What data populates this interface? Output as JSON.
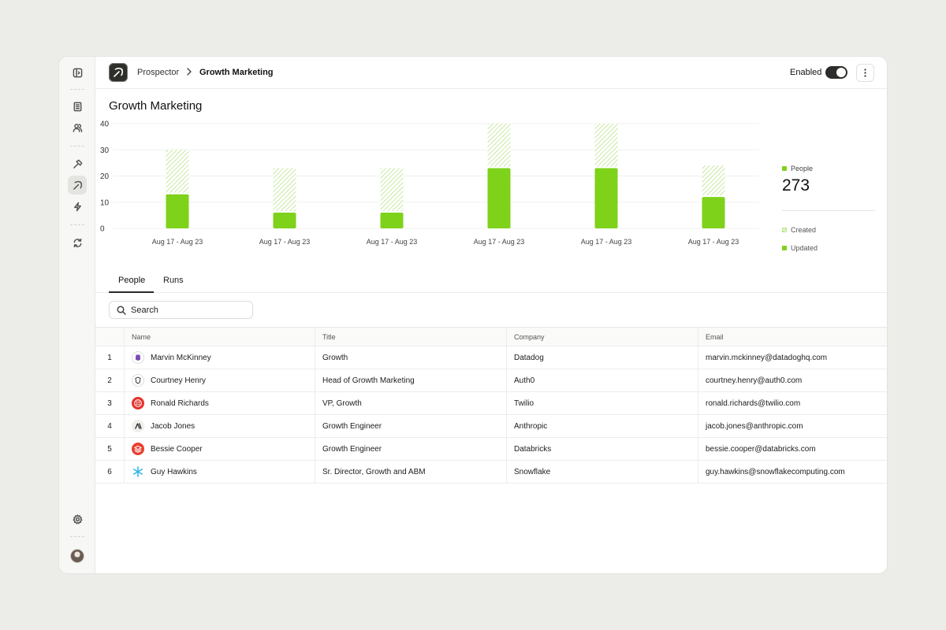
{
  "header": {
    "breadcrumb_parent": "Prospector",
    "breadcrumb_current": "Growth Marketing",
    "enabled_label": "Enabled",
    "enabled": true
  },
  "page": {
    "title": "Growth Marketing"
  },
  "rail": {
    "icons": [
      "sidebar-toggle-icon",
      "building-icon",
      "users-icon",
      "hammer-icon",
      "pickaxe-icon",
      "lightning-icon",
      "refresh-icon",
      "gear-icon"
    ]
  },
  "summary": {
    "people_label": "People",
    "people_total": "273",
    "created_label": "Created",
    "updated_label": "Updated"
  },
  "colors": {
    "accent": "#7ed21a",
    "accent_light": "#c8ec9c"
  },
  "chart_data": {
    "type": "bar",
    "stacked": true,
    "categories": [
      "Aug 17 - Aug 23",
      "Aug 17 - Aug 23",
      "Aug 17 - Aug 23",
      "Aug 17 - Aug 23",
      "Aug 17 - Aug 23",
      "Aug 17 - Aug 23"
    ],
    "series": [
      {
        "name": "Updated",
        "values": [
          13,
          6,
          6,
          23,
          23,
          12
        ]
      },
      {
        "name": "Created",
        "values": [
          17,
          17,
          17,
          17,
          17,
          12
        ]
      }
    ],
    "yticks": [
      0,
      10,
      20,
      30,
      40
    ],
    "ylim": [
      0,
      40
    ],
    "grid": true,
    "legend": "right"
  },
  "tabs": [
    {
      "label": "People",
      "active": true
    },
    {
      "label": "Runs",
      "active": false
    }
  ],
  "search": {
    "placeholder": "Search",
    "value": ""
  },
  "table": {
    "columns": [
      "Name",
      "Title",
      "Company",
      "Email"
    ],
    "rows": [
      {
        "index": "1",
        "name": "Marvin McKinney",
        "title": "Growth",
        "company": "Datadog",
        "email": "marvin.mckinney@datadoghq.com",
        "logo": "datadog-logo"
      },
      {
        "index": "2",
        "name": "Courtney Henry",
        "title": "Head of Growth Marketing",
        "company": "Auth0",
        "email": "courtney.henry@auth0.com",
        "logo": "auth0-logo"
      },
      {
        "index": "3",
        "name": "Ronald Richards",
        "title": "VP, Growth",
        "company": "Twilio",
        "email": "ronald.richards@twilio.com",
        "logo": "twilio-logo"
      },
      {
        "index": "4",
        "name": "Jacob Jones",
        "title": "Growth Engineer",
        "company": "Anthropic",
        "email": "jacob.jones@anthropic.com",
        "logo": "anthropic-logo"
      },
      {
        "index": "5",
        "name": "Bessie Cooper",
        "title": "Growth Engineer",
        "company": "Databricks",
        "email": "bessie.cooper@databricks.com",
        "logo": "databricks-logo"
      },
      {
        "index": "6",
        "name": "Guy Hawkins",
        "title": "Sr. Director, Growth and ABM",
        "company": "Snowflake",
        "email": "guy.hawkins@snowflakecomputing.com",
        "logo": "snowflake-logo"
      }
    ]
  }
}
